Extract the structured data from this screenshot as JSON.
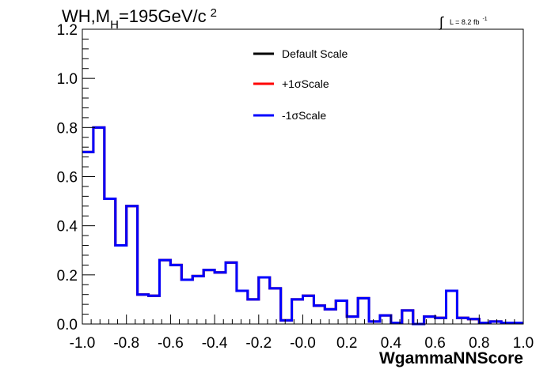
{
  "chart_data": {
    "type": "line",
    "title": "WH,M",
    "title_sub": "H",
    "title_rest": "=195GeV/c",
    "title_sup": "2",
    "lumi_integral": "∫",
    "lumi_text": "L = 8.2 fb",
    "lumi_sup": "-1",
    "xlabel": "WgammaNNScore",
    "ylabel": "",
    "xlim": [
      -1.0,
      1.0
    ],
    "ylim": [
      0.0,
      1.2
    ],
    "x_ticks": [
      "-1.0",
      "-0.8",
      "-0.6",
      "-0.4",
      "-0.2",
      "-0.0",
      "0.2",
      "0.4",
      "0.6",
      "0.8",
      "1.0"
    ],
    "x_tick_values": [
      -1.0,
      -0.8,
      -0.6,
      -0.4,
      -0.2,
      0.0,
      0.2,
      0.4,
      0.6,
      0.8,
      1.0
    ],
    "y_ticks": [
      "0.0",
      "0.2",
      "0.4",
      "0.6",
      "0.8",
      "1.0",
      "1.2"
    ],
    "y_tick_values": [
      0.0,
      0.2,
      0.4,
      0.6,
      0.8,
      1.0,
      1.2
    ],
    "grid": false,
    "legend_position": "top-center",
    "bin_edges": [
      -1.0,
      -0.95,
      -0.9,
      -0.85,
      -0.8,
      -0.75,
      -0.7,
      -0.65,
      -0.6,
      -0.55,
      -0.5,
      -0.45,
      -0.4,
      -0.35,
      -0.3,
      -0.25,
      -0.2,
      -0.15,
      -0.1,
      -0.05,
      0.0,
      0.05,
      0.1,
      0.15,
      0.2,
      0.25,
      0.3,
      0.35,
      0.4,
      0.45,
      0.5,
      0.55,
      0.6,
      0.65,
      0.7,
      0.75,
      0.8,
      0.85,
      0.9,
      0.95,
      1.0
    ],
    "series": [
      {
        "name": "Default Scale",
        "color": "#000000",
        "values": [
          0.7,
          0.8,
          0.51,
          0.32,
          0.48,
          0.12,
          0.115,
          0.26,
          0.24,
          0.18,
          0.195,
          0.22,
          0.21,
          0.25,
          0.135,
          0.1,
          0.19,
          0.145,
          0.015,
          0.1,
          0.115,
          0.075,
          0.06,
          0.095,
          0.03,
          0.105,
          0.01,
          0.035,
          0.005,
          0.055,
          0.0,
          0.03,
          0.025,
          0.135,
          0.025,
          0.02,
          0.005,
          0.01,
          0.005,
          0.005
        ]
      },
      {
        "name": "+1σScale",
        "color": "#ff0000",
        "values": [
          0.7,
          0.8,
          0.51,
          0.32,
          0.48,
          0.12,
          0.115,
          0.26,
          0.24,
          0.18,
          0.195,
          0.22,
          0.21,
          0.25,
          0.135,
          0.1,
          0.19,
          0.145,
          0.015,
          0.1,
          0.115,
          0.075,
          0.06,
          0.095,
          0.03,
          0.105,
          0.01,
          0.035,
          0.005,
          0.055,
          0.0,
          0.03,
          0.025,
          0.135,
          0.025,
          0.02,
          0.005,
          0.01,
          0.005,
          0.005
        ]
      },
      {
        "name": "-1σScale",
        "color": "#0000ff",
        "values": [
          0.7,
          0.8,
          0.51,
          0.32,
          0.48,
          0.12,
          0.115,
          0.26,
          0.24,
          0.18,
          0.195,
          0.22,
          0.21,
          0.25,
          0.135,
          0.1,
          0.19,
          0.145,
          0.015,
          0.1,
          0.115,
          0.075,
          0.06,
          0.095,
          0.03,
          0.105,
          0.01,
          0.035,
          0.005,
          0.055,
          0.0,
          0.03,
          0.025,
          0.135,
          0.025,
          0.02,
          0.005,
          0.01,
          0.005,
          0.005
        ]
      }
    ]
  }
}
